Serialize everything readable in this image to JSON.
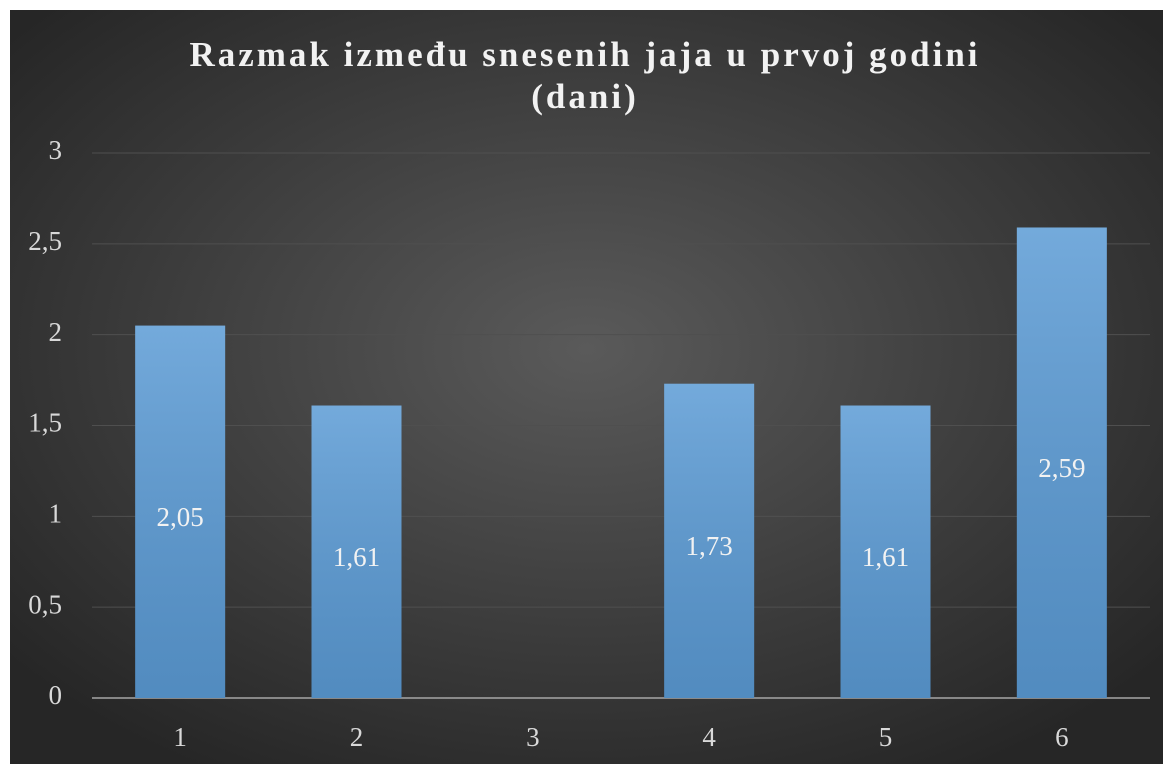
{
  "chart_data": {
    "type": "bar",
    "title": "Razmak između snesenih jaja u prvoj godini (dani)",
    "categories": [
      "1",
      "2",
      "3",
      "4",
      "5",
      "6"
    ],
    "values": [
      2.05,
      1.61,
      null,
      1.73,
      1.61,
      2.59
    ],
    "value_labels": [
      "2,05",
      "1,61",
      null,
      "1,73",
      "1,61",
      "2,59"
    ],
    "color": "#5b9bd5",
    "ylim": [
      0,
      3
    ],
    "yticks": [
      0,
      {
        "value": 0.5,
        "label": "0,5"
      },
      1,
      {
        "value": 1.5,
        "label": "1,5"
      },
      2,
      {
        "value": 2.5,
        "label": "2,5"
      },
      3
    ],
    "grid": true
  }
}
